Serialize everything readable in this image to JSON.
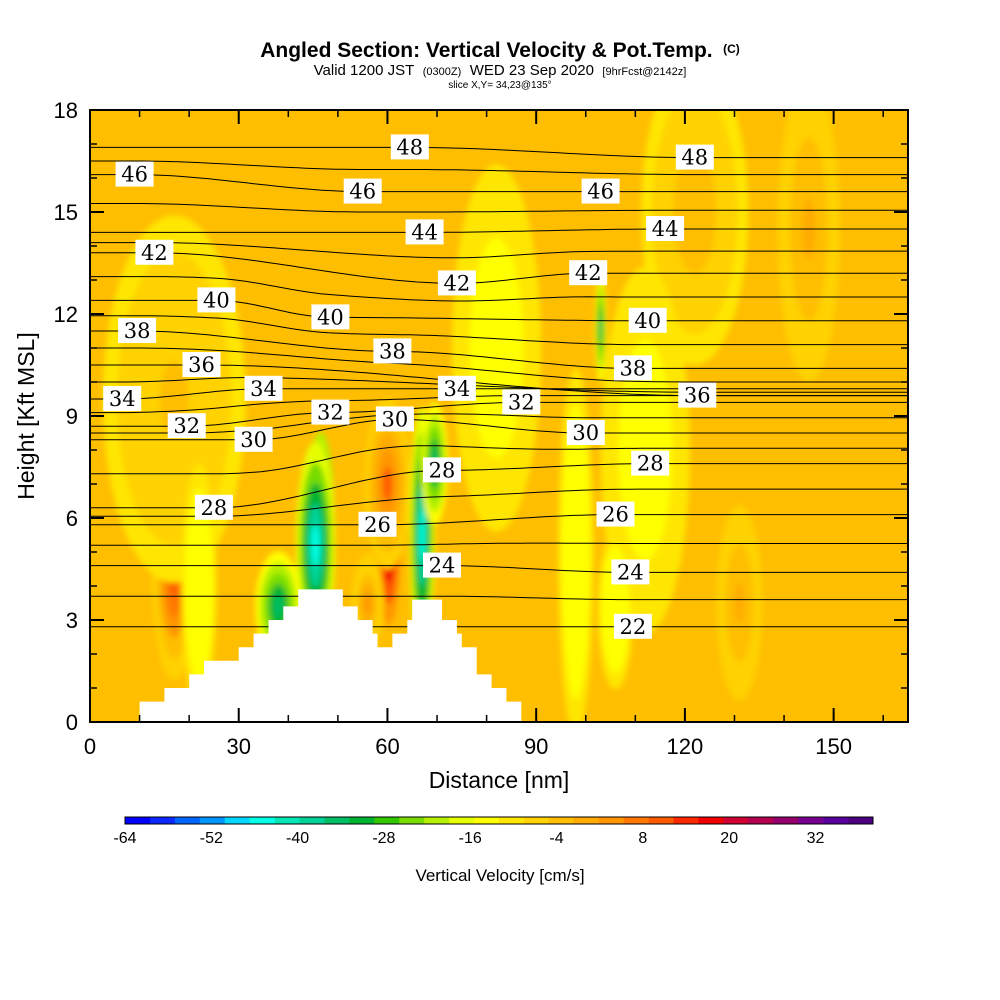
{
  "title": {
    "main": "Angled Section: Vertical Velocity & Pot.Temp.",
    "copyright": "(C)",
    "valid_prefix": "Valid 1200 JST",
    "valid_utc": "(0300Z)",
    "valid_date": "WED 23 Sep 2020",
    "forecast": "[9hrFcst@2142z]",
    "slice": "slice X,Y= 34,23@135°"
  },
  "chart_data": {
    "type": "heatmap",
    "xlabel": "Distance [nm]",
    "ylabel": "Height [Kft MSL]",
    "xlim": [
      0,
      165
    ],
    "ylim": [
      0,
      18
    ],
    "xticks": [
      0,
      30,
      60,
      90,
      120,
      150
    ],
    "yticks": [
      0,
      3,
      6,
      9,
      12,
      15,
      18
    ],
    "colorbar": {
      "title": "Vertical Velocity [cm/s]",
      "min": -64,
      "max": 40,
      "step": 4,
      "tick_values": [
        -64,
        -52,
        -40,
        -28,
        -16,
        -4,
        8,
        20,
        32
      ],
      "colors": [
        "#0000ff",
        "#0a28ff",
        "#0064ff",
        "#0096ff",
        "#00d7ff",
        "#00ffe6",
        "#00e6b4",
        "#00d296",
        "#00be64",
        "#00b432",
        "#32c800",
        "#78dc00",
        "#b4f000",
        "#e6ff00",
        "#ffff00",
        "#ffe600",
        "#ffd200",
        "#ffbe00",
        "#ffaa00",
        "#ff9600",
        "#ff7800",
        "#ff5a00",
        "#ff2800",
        "#f00000",
        "#d20032",
        "#b40050",
        "#96006e",
        "#780090",
        "#5a00a0",
        "#4b0082"
      ]
    },
    "terrain_kft": [
      [
        0,
        0
      ],
      [
        10,
        0
      ],
      [
        10,
        0.6
      ],
      [
        15,
        0.6
      ],
      [
        15,
        1
      ],
      [
        20,
        1
      ],
      [
        20,
        1.4
      ],
      [
        23,
        1.4
      ],
      [
        23,
        1.8
      ],
      [
        30,
        1.8
      ],
      [
        30,
        2.2
      ],
      [
        33,
        2.2
      ],
      [
        33,
        2.6
      ],
      [
        36,
        2.6
      ],
      [
        36,
        3.0
      ],
      [
        39,
        3.0
      ],
      [
        39,
        3.4
      ],
      [
        42,
        3.4
      ],
      [
        42,
        3.9
      ],
      [
        51,
        3.9
      ],
      [
        51,
        3.4
      ],
      [
        54,
        3.4
      ],
      [
        54,
        3.0
      ],
      [
        57,
        3.0
      ],
      [
        57,
        2.6
      ],
      [
        58,
        2.6
      ],
      [
        58,
        2.2
      ],
      [
        61,
        2.2
      ],
      [
        61,
        2.6
      ],
      [
        64,
        2.6
      ],
      [
        64,
        3.0
      ],
      [
        65,
        3.0
      ],
      [
        65,
        3.6
      ],
      [
        71,
        3.6
      ],
      [
        71,
        3.0
      ],
      [
        74,
        3.0
      ],
      [
        74,
        2.6
      ],
      [
        75,
        2.6
      ],
      [
        75,
        2.2
      ],
      [
        78,
        2.2
      ],
      [
        78,
        1.4
      ],
      [
        81,
        1.4
      ],
      [
        81,
        1.0
      ],
      [
        84,
        1.0
      ],
      [
        84,
        0.6
      ],
      [
        87,
        0.6
      ],
      [
        87,
        0
      ],
      [
        165,
        0
      ]
    ],
    "velocity_features": [
      {
        "x": 17,
        "z": 4.3,
        "sx": 2.5,
        "sz": 1.7,
        "value": 22
      },
      {
        "x": 46.5,
        "z": 6.2,
        "sx": 1.5,
        "sz": 1.3,
        "value": -64
      },
      {
        "x": 45.5,
        "z": 5.2,
        "sx": 2.2,
        "sz": 1.7,
        "value": -44
      },
      {
        "x": 38,
        "z": 3.4,
        "sx": 2.6,
        "sz": 0.9,
        "value": -30
      },
      {
        "x": 60.3,
        "z": 5.3,
        "sx": 1.7,
        "sz": 1.7,
        "value": 36
      },
      {
        "x": 60,
        "z": 7,
        "sx": 2.6,
        "sz": 1.4,
        "value": 20
      },
      {
        "x": 56,
        "z": 3.5,
        "sx": 1.8,
        "sz": 0.8,
        "value": 12
      },
      {
        "x": 67,
        "z": 5.5,
        "sx": 1.4,
        "sz": 2.1,
        "value": -44
      },
      {
        "x": 69.5,
        "z": 7.6,
        "sx": 1.5,
        "sz": 1.0,
        "value": -30
      },
      {
        "x": 103,
        "z": 11.6,
        "sx": 0.6,
        "sz": 0.9,
        "value": -30
      },
      {
        "x": 146,
        "z": 16.5,
        "sx": 1.8,
        "sz": 1.4,
        "value": 22
      },
      {
        "x": 145,
        "z": 14.5,
        "sx": 3.5,
        "sz": 2.5,
        "value": 10
      },
      {
        "x": 122,
        "z": 15,
        "sx": 6,
        "sz": 2.5,
        "value": 6
      },
      {
        "x": 131,
        "z": 3.5,
        "sx": 2.6,
        "sz": 1.6,
        "value": 8
      },
      {
        "x": 98,
        "z": 5,
        "sx": 2,
        "sz": 3,
        "value": -8
      },
      {
        "x": 17,
        "z": 9.5,
        "sx": 8,
        "sz": 3,
        "value": 5
      },
      {
        "x": 22,
        "z": 4,
        "sx": 2,
        "sz": 2,
        "value": -8
      },
      {
        "x": 82,
        "z": 11,
        "sx": 5,
        "sz": 3,
        "value": -6
      },
      {
        "x": 112,
        "z": 8,
        "sx": 5,
        "sz": 3,
        "value": -6
      },
      {
        "x": 106,
        "z": 3.3,
        "sx": 2,
        "sz": 1.3,
        "value": -8
      }
    ],
    "contour_labels": [
      {
        "value": "48",
        "x": 64.5,
        "z": 16.9
      },
      {
        "value": "48",
        "x": 122,
        "z": 16.6
      },
      {
        "value": "46",
        "x": 9,
        "z": 16.1
      },
      {
        "value": "46",
        "x": 55,
        "z": 15.6
      },
      {
        "value": "46",
        "x": 103,
        "z": 15.6
      },
      {
        "value": "44",
        "x": 67.5,
        "z": 14.4
      },
      {
        "value": "44",
        "x": 116,
        "z": 14.5
      },
      {
        "value": "42",
        "x": 13,
        "z": 13.8
      },
      {
        "value": "42",
        "x": 74,
        "z": 12.9
      },
      {
        "value": "42",
        "x": 100.5,
        "z": 13.2
      },
      {
        "value": "40",
        "x": 25.5,
        "z": 12.4
      },
      {
        "value": "40",
        "x": 48.5,
        "z": 11.9
      },
      {
        "value": "40",
        "x": 112.5,
        "z": 11.8
      },
      {
        "value": "38",
        "x": 9.5,
        "z": 11.5
      },
      {
        "value": "38",
        "x": 61,
        "z": 10.9
      },
      {
        "value": "38",
        "x": 109.5,
        "z": 10.4
      },
      {
        "value": "36",
        "x": 22.5,
        "z": 10.5
      },
      {
        "value": "36",
        "x": 122.5,
        "z": 9.6
      },
      {
        "value": "34",
        "x": 35,
        "z": 9.8
      },
      {
        "value": "34",
        "x": 74,
        "z": 9.8
      },
      {
        "value": "34",
        "x": 6.5,
        "z": 9.5
      },
      {
        "value": "32",
        "x": 19.5,
        "z": 8.7
      },
      {
        "value": "32",
        "x": 48.5,
        "z": 9.1
      },
      {
        "value": "32",
        "x": 87,
        "z": 9.4
      },
      {
        "value": "30",
        "x": 33,
        "z": 8.3
      },
      {
        "value": "30",
        "x": 61.5,
        "z": 8.9
      },
      {
        "value": "30",
        "x": 100,
        "z": 8.5
      },
      {
        "value": "28",
        "x": 25,
        "z": 6.3
      },
      {
        "value": "28",
        "x": 71,
        "z": 7.4
      },
      {
        "value": "28",
        "x": 113,
        "z": 7.6
      },
      {
        "value": "26",
        "x": 58,
        "z": 5.8
      },
      {
        "value": "26",
        "x": 106,
        "z": 6.1
      },
      {
        "value": "24",
        "x": 71,
        "z": 4.6
      },
      {
        "value": "24",
        "x": 109,
        "z": 4.4
      },
      {
        "value": "22",
        "x": 109.5,
        "z": 2.8
      }
    ]
  }
}
